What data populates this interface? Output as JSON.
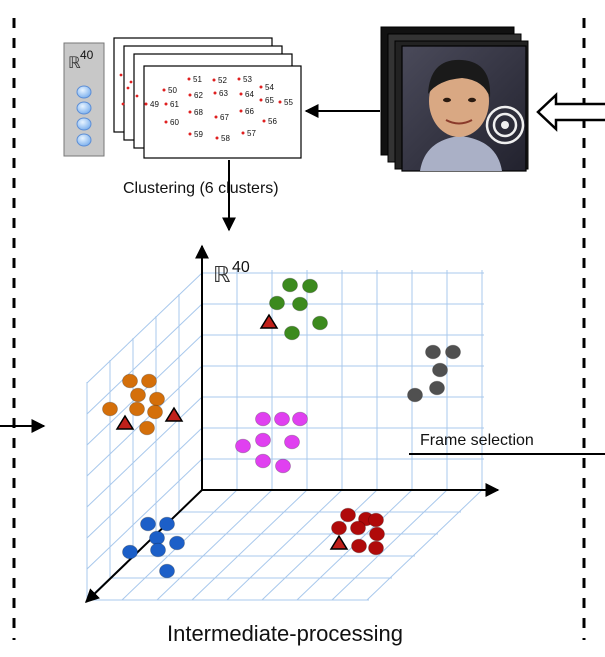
{
  "feature_space": {
    "symbol": "ℝ",
    "exponent": "40"
  },
  "landmark_card": {
    "points": [
      {
        "label": "50"
      },
      {
        "label": "51"
      },
      {
        "label": "52"
      },
      {
        "label": "53"
      },
      {
        "label": "54"
      },
      {
        "label": "49"
      },
      {
        "label": "61"
      },
      {
        "label": "62"
      },
      {
        "label": "63"
      },
      {
        "label": "64"
      },
      {
        "label": "65"
      },
      {
        "label": "55"
      },
      {
        "label": "68"
      },
      {
        "label": "67"
      },
      {
        "label": "66"
      },
      {
        "label": "60"
      },
      {
        "label": "56"
      },
      {
        "label": "59"
      },
      {
        "label": "58"
      },
      {
        "label": "57"
      }
    ]
  },
  "clustering_label": "Clustering (6 clusters)",
  "frame_selection_label": "Frame selection",
  "stage_title": "Intermediate-processing",
  "clusters": [
    {
      "name": "green",
      "color": "#3c8a1e"
    },
    {
      "name": "orange",
      "color": "#d46f0a"
    },
    {
      "name": "magenta",
      "color": "#e040f0"
    },
    {
      "name": "gray",
      "color": "#505050"
    },
    {
      "name": "blue",
      "color": "#1c5fc8"
    },
    {
      "name": "red",
      "color": "#b00a0a"
    }
  ],
  "representative_marker": {
    "shape": "triangle",
    "color": "#c0201a"
  }
}
